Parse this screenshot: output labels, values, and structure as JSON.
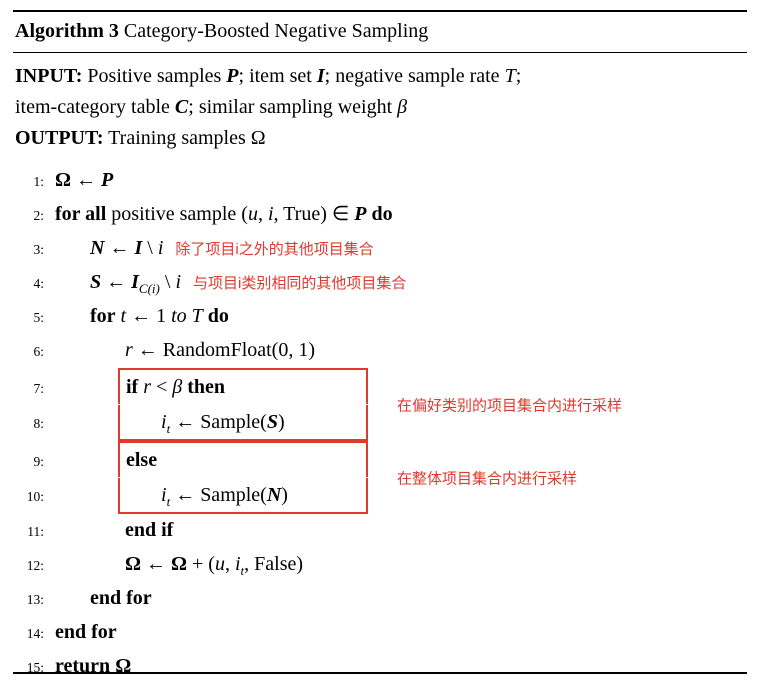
{
  "colors": {
    "annotation_red": "#e0392e",
    "text_ink": "#000000",
    "rule_black": "#000000"
  },
  "title": {
    "label": "Algorithm 3",
    "text": " Category-Boosted Negative Sampling"
  },
  "header": {
    "lines": [
      {
        "tokens": [
          {
            "t": "INPUT:",
            "s": "kw"
          },
          {
            "t": " Positive samples ",
            "s": "p"
          },
          {
            "t": "P",
            "s": "bv"
          },
          {
            "t": "; item set ",
            "s": "p"
          },
          {
            "t": "I",
            "s": "bv"
          },
          {
            "t": "; negative sample rate ",
            "s": "p"
          },
          {
            "t": "T",
            "s": "v"
          },
          {
            "t": ";",
            "s": "p"
          }
        ]
      },
      {
        "tokens": [
          {
            "t": "item-category table ",
            "s": "p"
          },
          {
            "t": "C",
            "s": "bv"
          },
          {
            "t": "; similar sampling weight ",
            "s": "p"
          },
          {
            "t": "β",
            "s": "v"
          }
        ]
      },
      {
        "tokens": [
          {
            "t": "OUTPUT:",
            "s": "kw"
          },
          {
            "t": " Training samples Ω",
            "s": "p"
          }
        ]
      }
    ]
  },
  "body": {
    "blocks": [
      {
        "type": "line",
        "num": "1:",
        "indent": 0,
        "tokens": [
          {
            "t": "Ω",
            "s": "bp"
          },
          {
            "t": " ← ",
            "s": "p"
          },
          {
            "t": "P",
            "s": "bv"
          }
        ]
      },
      {
        "type": "line",
        "num": "2:",
        "indent": 0,
        "tokens": [
          {
            "t": "for all",
            "s": "kw"
          },
          {
            "t": " positive sample (",
            "s": "p"
          },
          {
            "t": "u",
            "s": "v"
          },
          {
            "t": ", ",
            "s": "p"
          },
          {
            "t": "i",
            "s": "v"
          },
          {
            "t": ", True) ∈ ",
            "s": "p"
          },
          {
            "t": "P",
            "s": "bv"
          },
          {
            "t": " ",
            "s": "p"
          },
          {
            "t": "do",
            "s": "kw"
          }
        ]
      },
      {
        "type": "line",
        "num": "3:",
        "indent": 1,
        "tokens": [
          {
            "t": "N",
            "s": "bv"
          },
          {
            "t": " ← ",
            "s": "p"
          },
          {
            "t": "I",
            "s": "bv"
          },
          {
            "t": " \\ ",
            "s": "p"
          },
          {
            "t": "i",
            "s": "v"
          }
        ],
        "annotation": "除了项目i之外的其他项目集合"
      },
      {
        "type": "line",
        "num": "4:",
        "indent": 1,
        "tokens": [
          {
            "t": "S",
            "s": "bv"
          },
          {
            "t": " ← ",
            "s": "p"
          },
          {
            "t": "I",
            "s": "bv"
          },
          {
            "t": "C(i)",
            "s": "v",
            "sub": true
          },
          {
            "t": " \\ ",
            "s": "p"
          },
          {
            "t": "i",
            "s": "v"
          }
        ],
        "annotation": "与项目i类别相同的其他项目集合"
      },
      {
        "type": "line",
        "num": "5:",
        "indent": 1,
        "tokens": [
          {
            "t": "for",
            "s": "kw"
          },
          {
            "t": " ",
            "s": "p"
          },
          {
            "t": "t",
            "s": "v"
          },
          {
            "t": " ← 1 ",
            "s": "p"
          },
          {
            "t": "to",
            "s": "v"
          },
          {
            "t": " ",
            "s": "p"
          },
          {
            "t": "T",
            "s": "v"
          },
          {
            "t": " ",
            "s": "p"
          },
          {
            "t": "do",
            "s": "kw"
          }
        ]
      },
      {
        "type": "line",
        "num": "6:",
        "indent": 2,
        "tokens": [
          {
            "t": "r",
            "s": "v"
          },
          {
            "t": " ← RandomFloat(0, 1)",
            "s": "p"
          }
        ]
      },
      {
        "type": "box",
        "annotation": "在偏好类别的项目集合内进行采样",
        "lines": [
          {
            "num": "7:",
            "indent": 2,
            "tokens": [
              {
                "t": "if",
                "s": "kw"
              },
              {
                "t": " ",
                "s": "p"
              },
              {
                "t": "r",
                "s": "v"
              },
              {
                "t": " < ",
                "s": "p"
              },
              {
                "t": "β",
                "s": "v"
              },
              {
                "t": " ",
                "s": "p"
              },
              {
                "t": "then",
                "s": "kw"
              }
            ]
          },
          {
            "num": "8:",
            "indent": 3,
            "tokens": [
              {
                "t": "i",
                "s": "v"
              },
              {
                "t": "t",
                "s": "v",
                "sub": true
              },
              {
                "t": " ← Sample(",
                "s": "p"
              },
              {
                "t": "S",
                "s": "bv"
              },
              {
                "t": ")",
                "s": "p"
              }
            ]
          }
        ]
      },
      {
        "type": "box",
        "annotation": "在整体项目集合内进行采样",
        "lines": [
          {
            "num": "9:",
            "indent": 2,
            "tokens": [
              {
                "t": "else",
                "s": "kw"
              }
            ]
          },
          {
            "num": "10:",
            "indent": 3,
            "tokens": [
              {
                "t": "i",
                "s": "v"
              },
              {
                "t": "t",
                "s": "v",
                "sub": true
              },
              {
                "t": " ← Sample(",
                "s": "p"
              },
              {
                "t": "N",
                "s": "bv"
              },
              {
                "t": ")",
                "s": "p"
              }
            ]
          }
        ]
      },
      {
        "type": "line",
        "num": "11:",
        "indent": 2,
        "tokens": [
          {
            "t": "end if",
            "s": "kw"
          }
        ]
      },
      {
        "type": "line",
        "num": "12:",
        "indent": 2,
        "tokens": [
          {
            "t": "Ω",
            "s": "bp"
          },
          {
            "t": " ← ",
            "s": "p"
          },
          {
            "t": "Ω",
            "s": "bp"
          },
          {
            "t": " + (",
            "s": "p"
          },
          {
            "t": "u",
            "s": "v"
          },
          {
            "t": ", ",
            "s": "p"
          },
          {
            "t": "i",
            "s": "v"
          },
          {
            "t": "t",
            "s": "v",
            "sub": true
          },
          {
            "t": ", False)",
            "s": "p"
          }
        ]
      },
      {
        "type": "line",
        "num": "13:",
        "indent": 1,
        "tokens": [
          {
            "t": "end for",
            "s": "kw"
          }
        ]
      },
      {
        "type": "line",
        "num": "14:",
        "indent": 0,
        "tokens": [
          {
            "t": "end for",
            "s": "kw"
          }
        ]
      },
      {
        "type": "line",
        "num": "15:",
        "indent": 0,
        "tokens": [
          {
            "t": "return",
            "s": "kw"
          },
          {
            "t": " ",
            "s": "p"
          },
          {
            "t": "Ω",
            "s": "bp"
          }
        ]
      }
    ]
  }
}
